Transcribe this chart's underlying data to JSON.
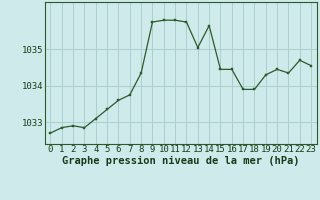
{
  "x": [
    0,
    1,
    2,
    3,
    4,
    5,
    6,
    7,
    8,
    9,
    10,
    11,
    12,
    13,
    14,
    15,
    16,
    17,
    18,
    19,
    20,
    21,
    22,
    23
  ],
  "y": [
    1032.7,
    1032.85,
    1032.9,
    1032.85,
    1033.1,
    1033.35,
    1033.6,
    1033.75,
    1034.35,
    1035.75,
    1035.8,
    1035.8,
    1035.75,
    1035.05,
    1035.65,
    1034.45,
    1034.45,
    1033.9,
    1033.9,
    1034.3,
    1034.45,
    1034.35,
    1034.7,
    1034.55
  ],
  "line_color": "#2d5a2d",
  "marker_color": "#2d5a2d",
  "bg_color": "#ceeaea",
  "grid_color": "#aacece",
  "xlabel": "Graphe pression niveau de la mer (hPa)",
  "ylim": [
    1032.4,
    1036.3
  ],
  "yticks": [
    1033,
    1034,
    1035
  ],
  "xticks": [
    0,
    1,
    2,
    3,
    4,
    5,
    6,
    7,
    8,
    9,
    10,
    11,
    12,
    13,
    14,
    15,
    16,
    17,
    18,
    19,
    20,
    21,
    22,
    23
  ],
  "xlabel_fontsize": 7.5,
  "tick_fontsize": 6.5,
  "figsize": [
    3.2,
    2.0
  ],
  "dpi": 100
}
